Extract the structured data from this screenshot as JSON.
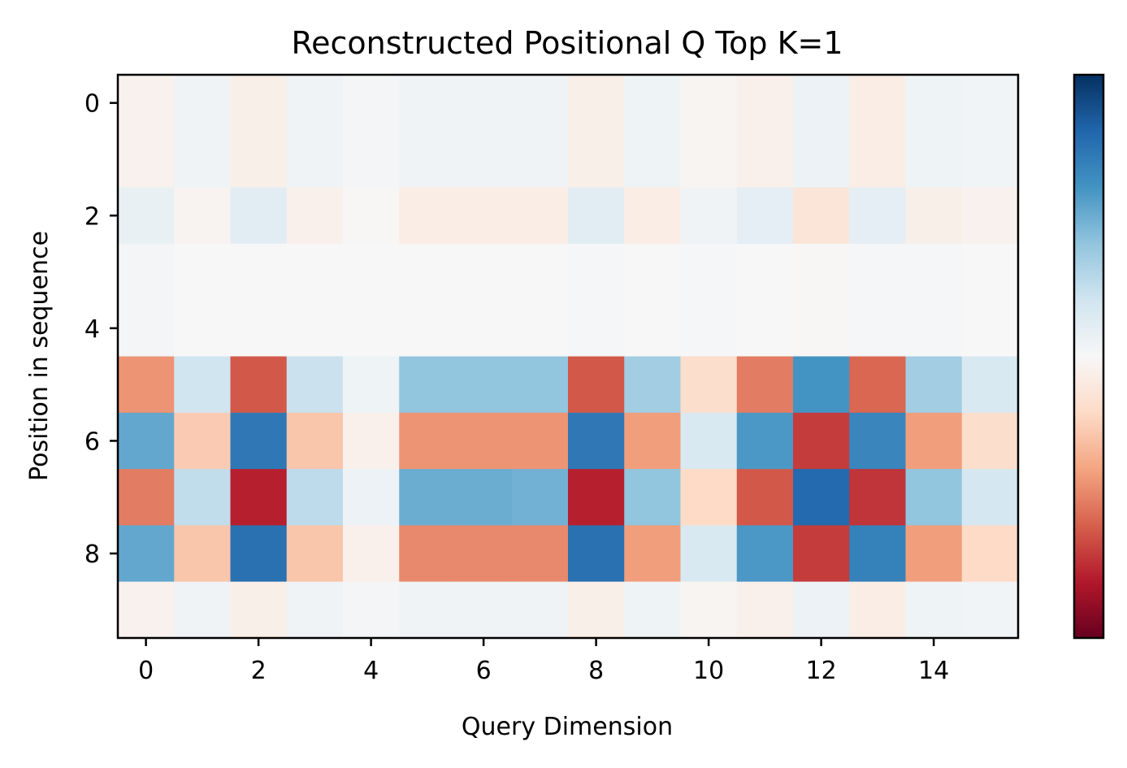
{
  "chart_data": {
    "type": "heatmap",
    "title": "Reconstructed Positional Q Top K=1",
    "xlabel": "Query Dimension",
    "ylabel": "Position in sequence",
    "colormap": "RdBu",
    "vlim": [
      -1,
      1
    ],
    "x_ticks": [
      0,
      2,
      4,
      6,
      8,
      10,
      12,
      14
    ],
    "y_ticks": [
      0,
      2,
      4,
      6,
      8
    ],
    "colorbar": {
      "ticks": [],
      "position": "right"
    },
    "grid": false,
    "values": [
      [
        -0.04,
        0.04,
        -0.06,
        0.04,
        0.02,
        0.04,
        0.04,
        0.04,
        -0.06,
        0.05,
        -0.02,
        -0.05,
        0.06,
        -0.07,
        0.05,
        0.03
      ],
      [
        -0.04,
        0.04,
        -0.06,
        0.04,
        0.02,
        0.04,
        0.04,
        0.04,
        -0.06,
        0.05,
        -0.02,
        -0.05,
        0.06,
        -0.07,
        0.05,
        0.03
      ],
      [
        0.08,
        -0.03,
        0.11,
        -0.05,
        -0.01,
        -0.07,
        -0.07,
        -0.07,
        0.11,
        -0.07,
        0.04,
        0.1,
        -0.13,
        0.1,
        -0.06,
        -0.04
      ],
      [
        0.02,
        0.0,
        0.0,
        0.0,
        0.0,
        0.0,
        0.0,
        0.0,
        0.01,
        0.0,
        0.01,
        0.0,
        -0.01,
        0.01,
        0.01,
        0.0
      ],
      [
        0.02,
        0.0,
        0.0,
        0.0,
        0.0,
        0.0,
        0.0,
        0.0,
        0.01,
        0.0,
        0.01,
        0.0,
        -0.01,
        0.01,
        0.01,
        0.0
      ],
      [
        -0.45,
        0.2,
        -0.62,
        0.22,
        0.05,
        0.4,
        0.4,
        0.4,
        -0.62,
        0.35,
        -0.18,
        -0.52,
        0.6,
        -0.58,
        0.35,
        0.16
      ],
      [
        0.52,
        -0.26,
        0.72,
        -0.28,
        -0.05,
        -0.45,
        -0.45,
        -0.45,
        0.72,
        -0.42,
        0.16,
        0.58,
        -0.7,
        0.66,
        -0.42,
        -0.18
      ],
      [
        -0.52,
        0.25,
        -0.78,
        0.26,
        0.06,
        0.5,
        0.5,
        0.48,
        -0.78,
        0.4,
        -0.2,
        -0.62,
        0.78,
        -0.72,
        0.4,
        0.18
      ],
      [
        0.52,
        -0.28,
        0.75,
        -0.28,
        -0.05,
        -0.48,
        -0.48,
        -0.48,
        0.75,
        -0.42,
        0.16,
        0.58,
        -0.7,
        0.68,
        -0.42,
        -0.2
      ],
      [
        -0.04,
        0.04,
        -0.06,
        0.04,
        0.02,
        0.04,
        0.04,
        0.04,
        -0.06,
        0.05,
        -0.02,
        -0.05,
        0.06,
        -0.07,
        0.05,
        0.03
      ]
    ]
  }
}
